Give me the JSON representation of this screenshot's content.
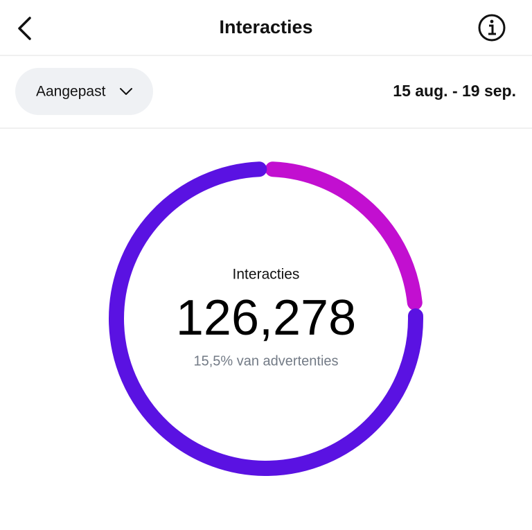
{
  "header": {
    "title": "Interacties"
  },
  "filter": {
    "label": "Aangepast",
    "date_range": "15 aug. - 19 sep."
  },
  "donut": {
    "label": "Interacties",
    "total": "126,278",
    "subtitle": "15,5% van advertenties",
    "segments": [
      {
        "color": "#c20fd0",
        "value": 24
      },
      {
        "color": "#5a12e2",
        "value": 76
      }
    ]
  }
}
